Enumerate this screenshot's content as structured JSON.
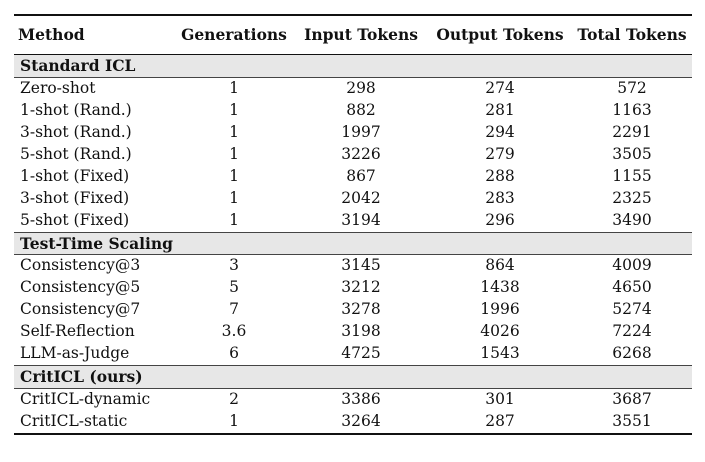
{
  "headers": [
    "Method",
    "Generations",
    "Input Tokens",
    "Output Tokens",
    "Total Tokens"
  ],
  "sections": [
    {
      "title": "Standard ICL",
      "rows": [
        {
          "method": "Zero-shot",
          "generations": "1",
          "input": "298",
          "output": "274",
          "total": "572"
        },
        {
          "method": "1-shot (Rand.)",
          "generations": "1",
          "input": "882",
          "output": "281",
          "total": "1163"
        },
        {
          "method": "3-shot (Rand.)",
          "generations": "1",
          "input": "1997",
          "output": "294",
          "total": "2291"
        },
        {
          "method": "5-shot (Rand.)",
          "generations": "1",
          "input": "3226",
          "output": "279",
          "total": "3505"
        },
        {
          "method": "1-shot (Fixed)",
          "generations": "1",
          "input": "867",
          "output": "288",
          "total": "1155"
        },
        {
          "method": "3-shot (Fixed)",
          "generations": "1",
          "input": "2042",
          "output": "283",
          "total": "2325"
        },
        {
          "method": "5-shot (Fixed)",
          "generations": "1",
          "input": "3194",
          "output": "296",
          "total": "3490"
        }
      ]
    },
    {
      "title": "Test-Time Scaling",
      "rows": [
        {
          "method": "Consistency@3",
          "generations": "3",
          "input": "3145",
          "output": "864",
          "total": "4009"
        },
        {
          "method": "Consistency@5",
          "generations": "5",
          "input": "3212",
          "output": "1438",
          "total": "4650"
        },
        {
          "method": "Consistency@7",
          "generations": "7",
          "input": "3278",
          "output": "1996",
          "total": "5274"
        },
        {
          "method": "Self-Reflection",
          "generations": "3.6",
          "input": "3198",
          "output": "4026",
          "total": "7224"
        },
        {
          "method": "LLM-as-Judge",
          "generations": "6",
          "input": "4725",
          "output": "1543",
          "total": "6268"
        }
      ]
    },
    {
      "title": "CritICL (ours)",
      "rows": [
        {
          "method": "CritICL-dynamic",
          "generations": "2",
          "input": "3386",
          "output": "301",
          "total": "3687"
        },
        {
          "method": "CritICL-static",
          "generations": "1",
          "input": "3264",
          "output": "287",
          "total": "3551"
        }
      ]
    }
  ]
}
